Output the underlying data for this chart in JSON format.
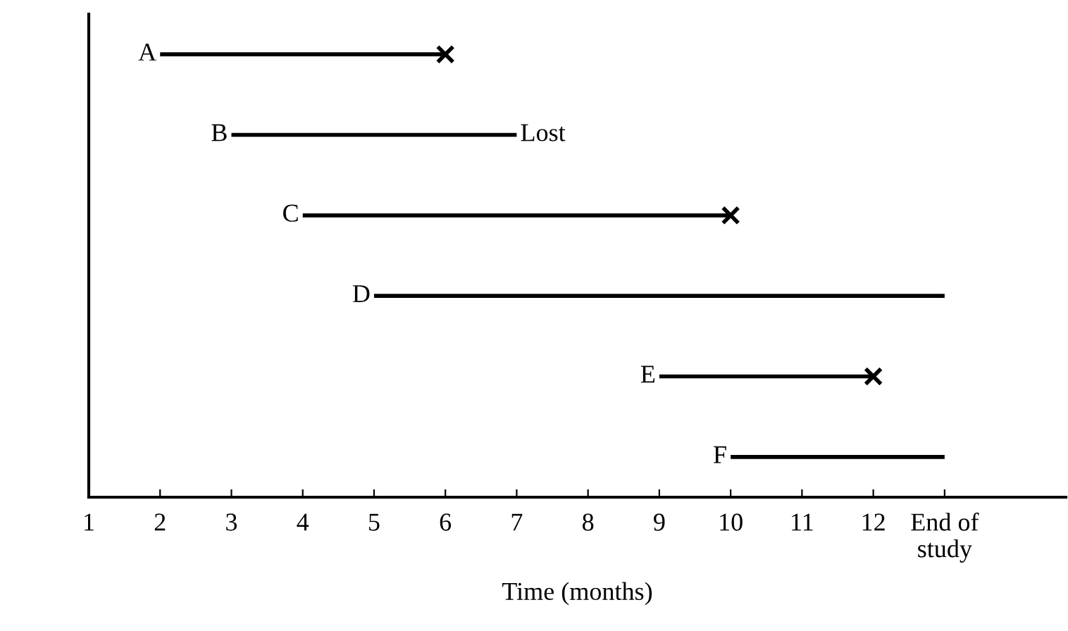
{
  "chart_data": {
    "type": "bar",
    "orientation": "horizontal",
    "xlabel": "Time (months)",
    "categories": [
      "A",
      "B",
      "C",
      "D",
      "E",
      "F"
    ],
    "series": [
      {
        "color": "#000000",
        "base": [
          2,
          3,
          4,
          5,
          9,
          10
        ],
        "values": [
          4,
          4,
          6,
          8,
          3,
          3
        ],
        "value_labels": [
          null,
          "Lost",
          null,
          null,
          null,
          null
        ]
      },
      {
        "type": "scatter",
        "color": "#000000",
        "marker": "cross",
        "values": [
          6,
          null,
          10,
          null,
          12,
          null
        ]
      }
    ],
    "xlim": [
      1,
      14.7
    ],
    "xticks": [
      1,
      2,
      3,
      4,
      5,
      6,
      7,
      8,
      9,
      10,
      11,
      12,
      {
        "value": 13,
        "label": "End of\nstudy"
      }
    ],
    "tick_labels": "x",
    "grid": false
  }
}
